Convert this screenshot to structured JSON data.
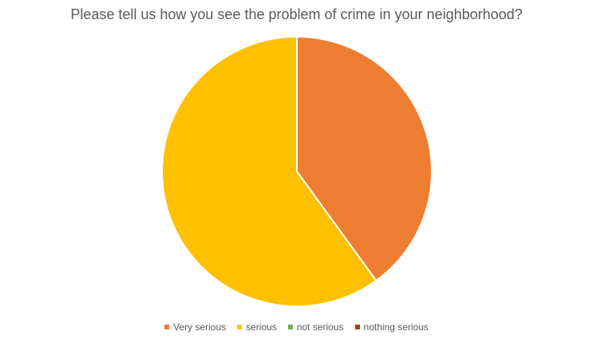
{
  "chart_data": {
    "type": "pie",
    "title": "Please tell us how you see the problem of crime in your neighborhood?",
    "categories": [
      "Very serious",
      "serious",
      "not serious",
      "nothing serious"
    ],
    "values": [
      40,
      60,
      0,
      0
    ],
    "colors": [
      "#ED7D31",
      "#FFC000",
      "#70AD47",
      "#9E480E"
    ],
    "legend_position": "bottom",
    "start_angle_deg": 0,
    "direction": "clockwise"
  }
}
